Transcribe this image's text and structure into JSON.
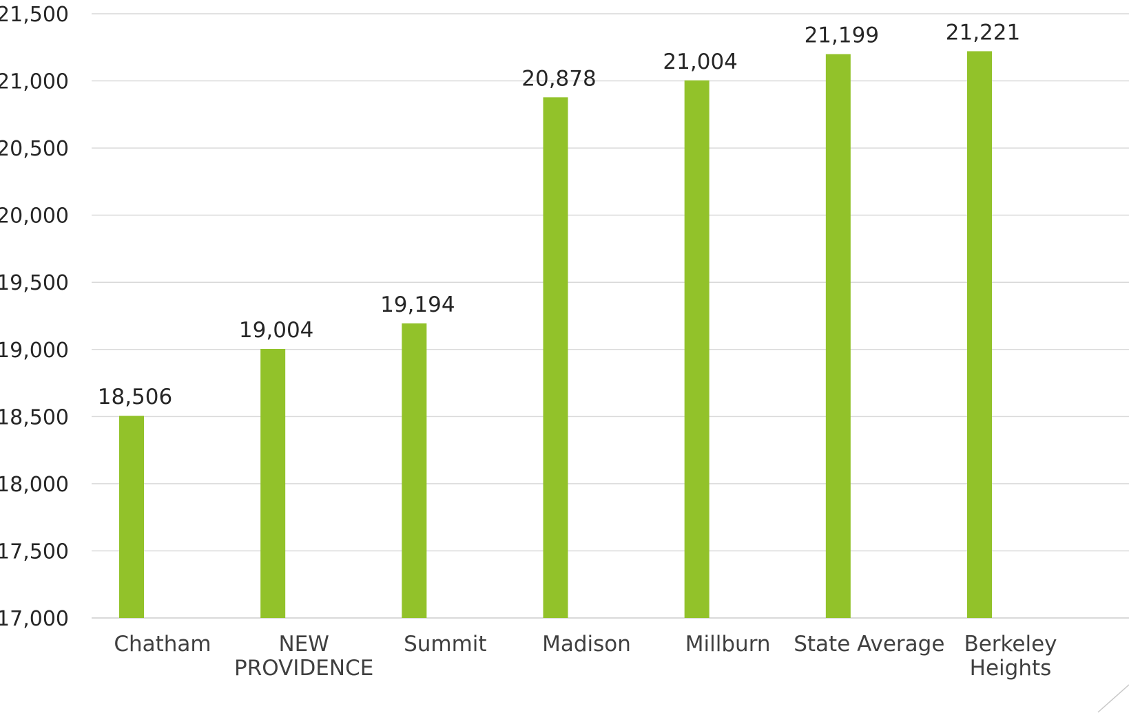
{
  "chart_data": {
    "type": "bar",
    "title": "",
    "xlabel": "",
    "ylabel": "",
    "ylim": [
      17000,
      21500
    ],
    "ytick_step": 500,
    "ytick_labels": [
      "17,000",
      "17,500",
      "18,000",
      "18,500",
      "19,000",
      "19,500",
      "20,000",
      "20,500",
      "21,000",
      "21,500"
    ],
    "grid": true,
    "legend": "none",
    "bar_color": "#92c22a",
    "categories": [
      [
        "Chatham"
      ],
      [
        "NEW",
        "PROVIDENCE"
      ],
      [
        "Summit"
      ],
      [
        "Madison"
      ],
      [
        "Millburn"
      ],
      [
        "State Average"
      ],
      [
        "Berkeley",
        "Heights"
      ]
    ],
    "values": [
      18506,
      19004,
      19194,
      20878,
      21004,
      21199,
      21221
    ],
    "data_labels": [
      "18,506",
      "19,004",
      "19,194",
      "20,878",
      "21,004",
      "21,199",
      "21,221"
    ]
  }
}
